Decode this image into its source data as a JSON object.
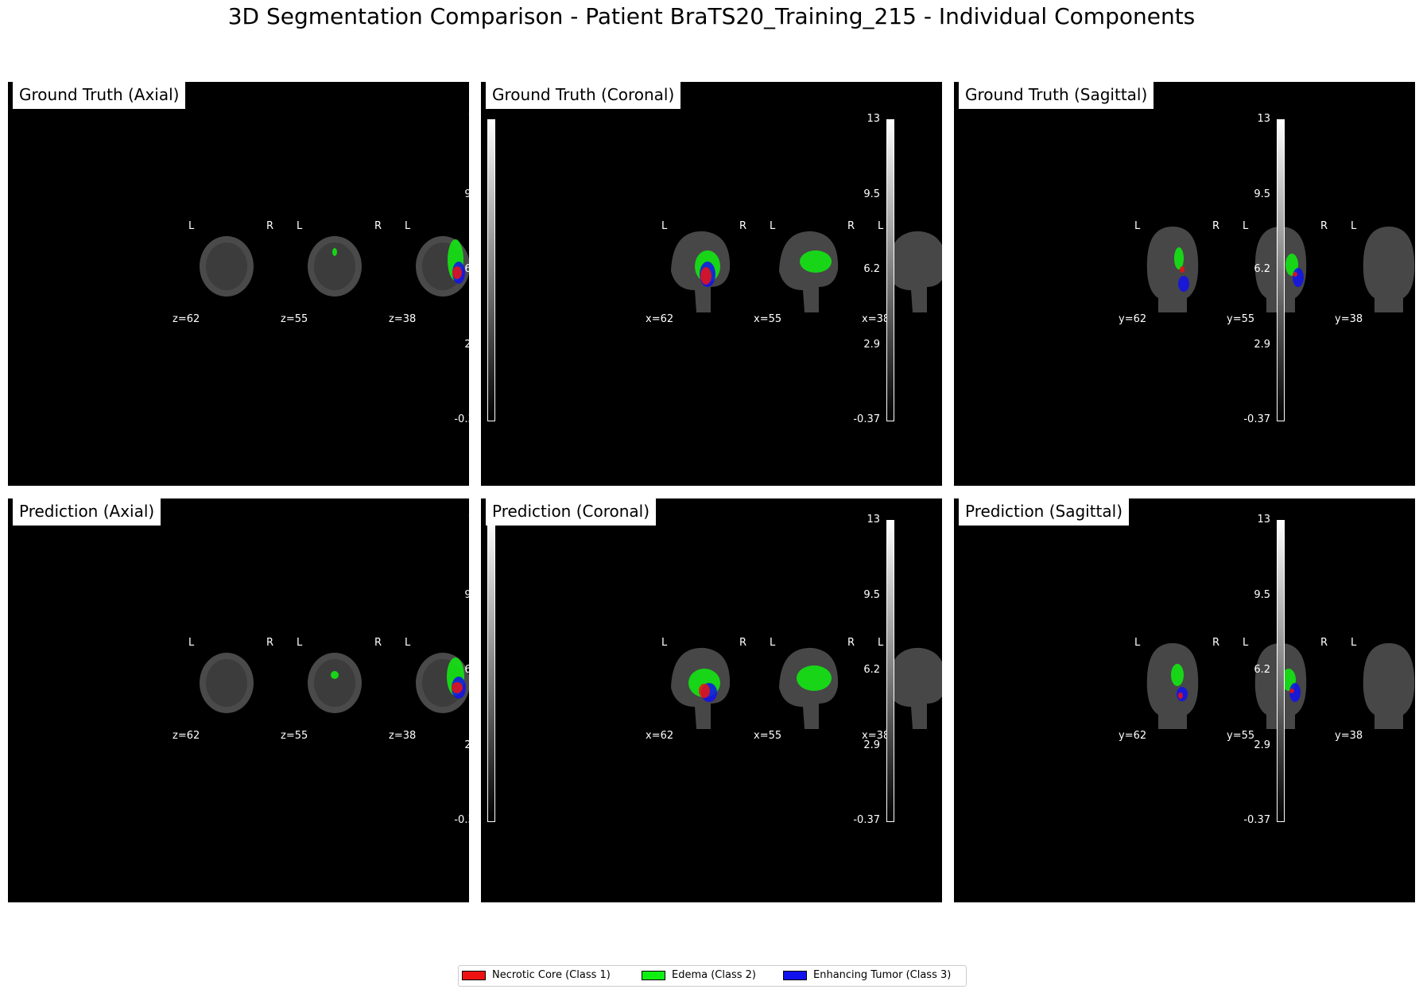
{
  "title": "3D Segmentation Comparison - Patient BraTS20_Training_215 - Individual Components",
  "panels": [
    {
      "title": "Ground Truth (Axial)",
      "labels": [
        "z=62",
        "z=55",
        "z=38"
      ]
    },
    {
      "title": "Ground Truth (Coronal)",
      "labels": [
        "x=62",
        "x=55",
        "x=38"
      ]
    },
    {
      "title": "Ground Truth (Sagittal)",
      "labels": [
        "y=62",
        "y=55",
        "y=38"
      ]
    },
    {
      "title": "Prediction (Axial)",
      "labels": [
        "z=62",
        "z=55",
        "z=38"
      ]
    },
    {
      "title": "Prediction (Coronal)",
      "labels": [
        "x=62",
        "x=55",
        "x=38"
      ]
    },
    {
      "title": "Prediction (Sagittal)",
      "labels": [
        "y=62",
        "y=55",
        "y=38"
      ]
    }
  ],
  "orientation": {
    "left": "L",
    "right": "R"
  },
  "colorbar_ticks": [
    "13",
    "9.5",
    "6.2",
    "2.9",
    "-0.37"
  ],
  "legend": [
    {
      "label": "Necrotic Core (Class 1)",
      "color": "#ee1111"
    },
    {
      "label": "Edema (Class 2)",
      "color": "#11ee11"
    },
    {
      "label": "Enhancing Tumor (Class 3)",
      "color": "#1111ee"
    }
  ]
}
